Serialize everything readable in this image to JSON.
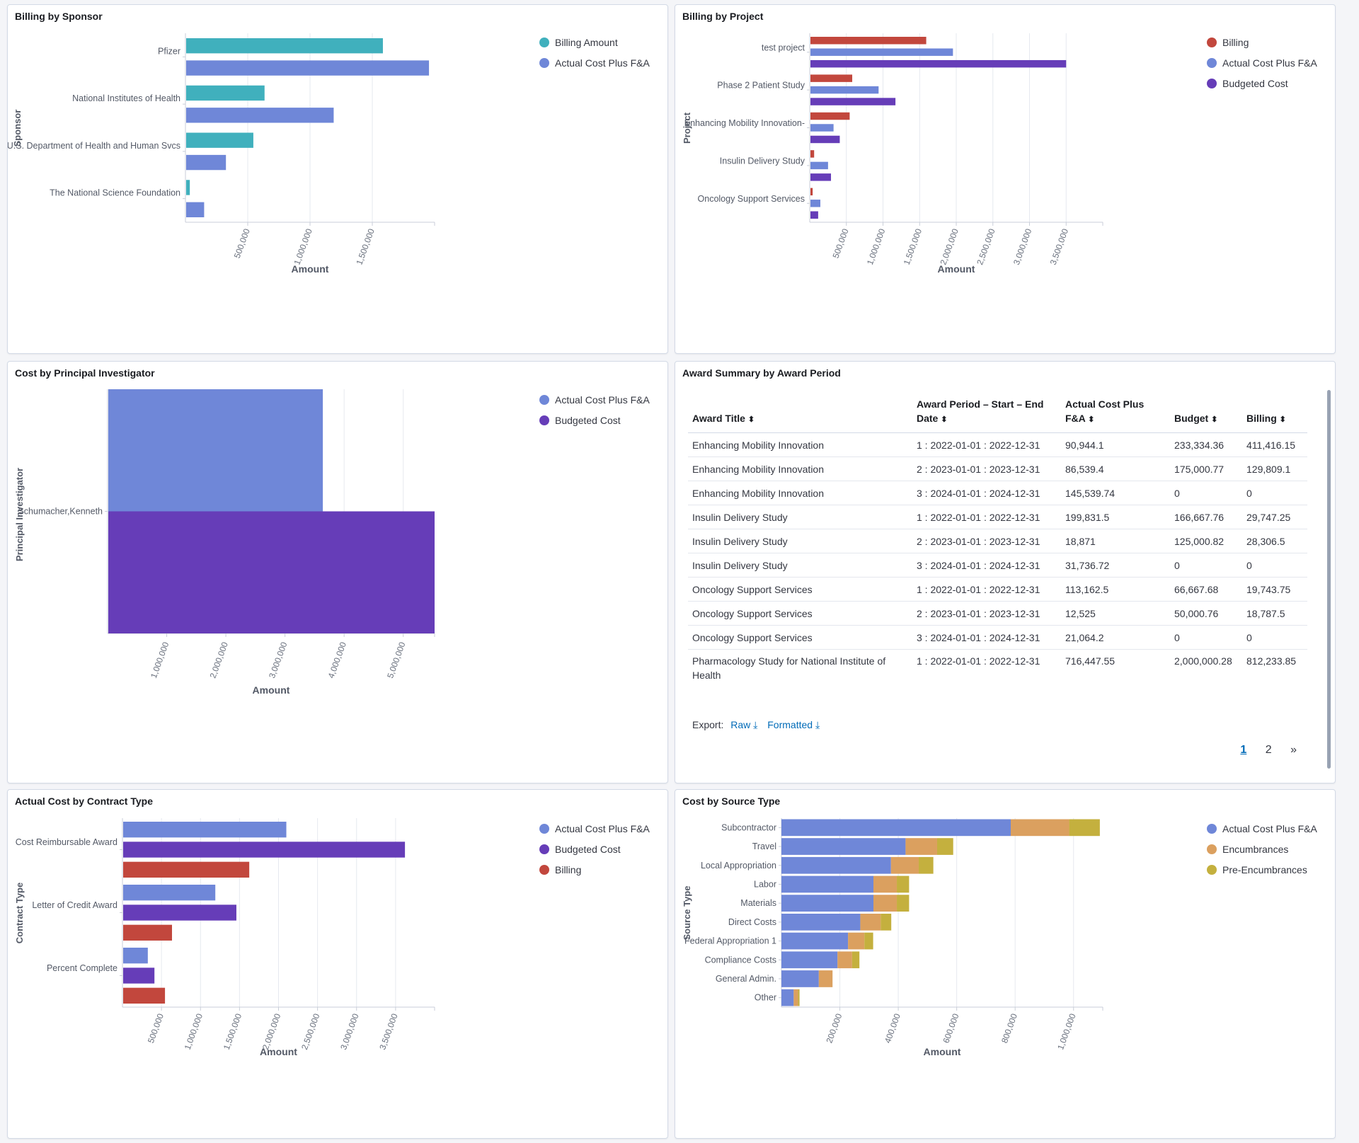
{
  "colors": {
    "teal": "#40b0bd",
    "blue": "#6f87d8",
    "purple": "#663db8",
    "red": "#c2473d",
    "orange": "#dba05f",
    "olive": "#c4b03e",
    "link": "#006bb8"
  },
  "panels": {
    "sponsor": {
      "title": "Billing by Sponsor",
      "legend": [
        "Billing Amount",
        "Actual Cost Plus F&A"
      ],
      "chart_data": {
        "type": "bar",
        "orientation": "horizontal",
        "title": "Billing by Sponsor",
        "ylabel": "Sponsor",
        "xlabel": "Amount",
        "categories": [
          "Pfizer",
          "National Institutes of Health",
          "U.S. Department of Health and Human Svcs",
          "The National Science Foundation"
        ],
        "series": [
          {
            "name": "Billing Amount",
            "color": "teal",
            "values": [
              1585000,
              635000,
              545000,
              35000
            ]
          },
          {
            "name": "Actual Cost Plus F&A",
            "color": "blue",
            "values": [
              1955000,
              1190000,
              325000,
              150000
            ]
          }
        ],
        "xlim": [
          0,
          2000000
        ],
        "ticks": [
          500000,
          1000000,
          1500000
        ],
        "tick_labels": [
          "500,000",
          "1,000,000",
          "1,500,000"
        ],
        "grid": true
      }
    },
    "project": {
      "title": "Billing by Project",
      "legend": [
        "Billing",
        "Actual Cost Plus F&A",
        "Budgeted Cost"
      ],
      "chart_data": {
        "type": "bar",
        "orientation": "horizontal",
        "title": "Billing by Project",
        "ylabel": "Project",
        "xlabel": "Amount",
        "categories": [
          "test project",
          "Phase 2 Patient Study",
          "Enhancing Mobility Innovation-",
          "Insulin Delivery Study",
          "Oncology Support Services"
        ],
        "series": [
          {
            "name": "Billing",
            "color": "red",
            "values": [
              1590000,
              580000,
              545000,
              60000,
              40000
            ]
          },
          {
            "name": "Actual Cost Plus F&A",
            "color": "blue",
            "values": [
              1955000,
              940000,
              325000,
              250000,
              145000
            ]
          },
          {
            "name": "Budgeted Cost",
            "color": "purple",
            "values": [
              3500000,
              1170000,
              410000,
              290000,
              115000
            ]
          }
        ],
        "xlim": [
          0,
          4000000
        ],
        "ticks": [
          500000,
          1000000,
          1500000,
          2000000,
          2500000,
          3000000,
          3500000
        ],
        "tick_labels": [
          "500,000",
          "1,000,000",
          "1,500,000",
          "2,000,000",
          "2,500,000",
          "3,000,000",
          "3,500,000"
        ],
        "grid": true
      }
    },
    "pi": {
      "title": "Cost by Principal Investigator",
      "legend": [
        "Actual Cost Plus F&A",
        "Budgeted Cost"
      ],
      "chart_data": {
        "type": "bar",
        "orientation": "horizontal",
        "title": "Cost by Principal Investigator",
        "ylabel": "Principal Investigator",
        "xlabel": "Amount",
        "categories": [
          "Schumacher,Kenneth"
        ],
        "series": [
          {
            "name": "Actual Cost Plus F&A",
            "color": "blue",
            "values": [
              3640000
            ]
          },
          {
            "name": "Budgeted Cost",
            "color": "purple",
            "values": [
              5530000
            ]
          }
        ],
        "xlim": [
          0,
          5530000
        ],
        "ticks": [
          1000000,
          2000000,
          3000000,
          4000000,
          5000000
        ],
        "tick_labels": [
          "1,000,000",
          "2,000,000",
          "3,000,000",
          "4,000,000",
          "5,000,000"
        ],
        "grid": true
      }
    },
    "contract": {
      "title": "Actual Cost by Contract Type",
      "legend": [
        "Actual Cost Plus F&A",
        "Budgeted Cost",
        "Billing"
      ],
      "chart_data": {
        "type": "bar",
        "orientation": "horizontal",
        "title": "Actual Cost by Contract Type",
        "ylabel": "Contract Type",
        "xlabel": "Amount",
        "categories": [
          "Cost Reimbursable Award",
          "Letter of Credit Award",
          "Percent Complete"
        ],
        "series": [
          {
            "name": "Actual Cost Plus F&A",
            "color": "blue",
            "values": [
              2100000,
              1190000,
              325000
            ]
          },
          {
            "name": "Budgeted Cost",
            "color": "purple",
            "values": [
              3620000,
              1460000,
              410000
            ]
          },
          {
            "name": "Billing",
            "color": "red",
            "values": [
              1625000,
              635000,
              545000
            ]
          }
        ],
        "xlim": [
          0,
          4000000
        ],
        "ticks": [
          500000,
          1000000,
          1500000,
          2000000,
          2500000,
          3000000,
          3500000
        ],
        "tick_labels": [
          "500,000",
          "1,000,000",
          "1,500,000",
          "2,000,000",
          "2,500,000",
          "3,000,000",
          "3,500,000"
        ],
        "grid": true
      }
    },
    "source": {
      "title": "Cost by Source Type",
      "legend": [
        "Actual Cost Plus F&A",
        "Encumbrances",
        "Pre-Encumbrances"
      ],
      "chart_data": {
        "type": "bar",
        "orientation": "horizontal",
        "stacked": true,
        "title": "Cost by Source Type",
        "ylabel": "Source Type",
        "xlabel": "Amount",
        "categories": [
          "Subcontractor",
          "Travel",
          "Local Appropriation",
          "Labor",
          "Materials",
          "Direct Costs",
          "Federal Appropriation 1",
          "Compliance Costs",
          "General Admin.",
          "Other"
        ],
        "series": [
          {
            "name": "Actual Cost Plus F&A",
            "color": "blue",
            "values": [
              785000,
              425000,
              375000,
              315000,
              315000,
              270000,
              228000,
              192000,
              128000,
              42000
            ]
          },
          {
            "name": "Encumbrances",
            "color": "orange",
            "values": [
              200000,
              108000,
              95000,
              80000,
              80000,
              70000,
              56000,
              50000,
              47000,
              15000
            ]
          },
          {
            "name": "Pre-Encumbrances",
            "color": "olive",
            "values": [
              105000,
              55000,
              50000,
              42000,
              42000,
              36000,
              30000,
              25000,
              0,
              5000
            ]
          }
        ],
        "xlim": [
          0,
          1100000
        ],
        "ticks": [
          200000,
          400000,
          600000,
          800000,
          1000000
        ],
        "tick_labels": [
          "200,000",
          "400,000",
          "600,000",
          "800,000",
          "1,000,000"
        ],
        "grid": true
      }
    },
    "award": {
      "title": "Award Summary by Award Period",
      "columns": [
        "Award Title",
        "Award Period – Start – End Date",
        "Actual Cost Plus F&A",
        "Budget",
        "Billing"
      ],
      "rows": [
        [
          "Enhancing Mobility Innovation",
          "1 : 2022-01-01 : 2022-12-31",
          "90,944.1",
          "233,334.36",
          "411,416.15"
        ],
        [
          "Enhancing Mobility Innovation",
          "2 : 2023-01-01 : 2023-12-31",
          "86,539.4",
          "175,000.77",
          "129,809.1"
        ],
        [
          "Enhancing Mobility Innovation",
          "3 : 2024-01-01 : 2024-12-31",
          "145,539.74",
          "0",
          "0"
        ],
        [
          "Insulin Delivery Study",
          "1 : 2022-01-01 : 2022-12-31",
          "199,831.5",
          "166,667.76",
          "29,747.25"
        ],
        [
          "Insulin Delivery Study",
          "2 : 2023-01-01 : 2023-12-31",
          "18,871",
          "125,000.82",
          "28,306.5"
        ],
        [
          "Insulin Delivery Study",
          "3 : 2024-01-01 : 2024-12-31",
          "31,736.72",
          "0",
          "0"
        ],
        [
          "Oncology Support Services",
          "1 : 2022-01-01 : 2022-12-31",
          "113,162.5",
          "66,667.68",
          "19,743.75"
        ],
        [
          "Oncology Support Services",
          "2 : 2023-01-01 : 2023-12-31",
          "12,525",
          "50,000.76",
          "18,787.5"
        ],
        [
          "Oncology Support Services",
          "3 : 2024-01-01 : 2024-12-31",
          "21,064.2",
          "0",
          "0"
        ],
        [
          "Pharmacology Study for National Institute of Health",
          "1 : 2022-01-01 : 2022-12-31",
          "716,447.55",
          "2,000,000.28",
          "812,233.85"
        ]
      ],
      "export_label": "Export:",
      "export_raw": "Raw",
      "export_formatted": "Formatted",
      "pages": [
        "1",
        "2"
      ],
      "current_page": "1",
      "next_label": "»"
    }
  }
}
